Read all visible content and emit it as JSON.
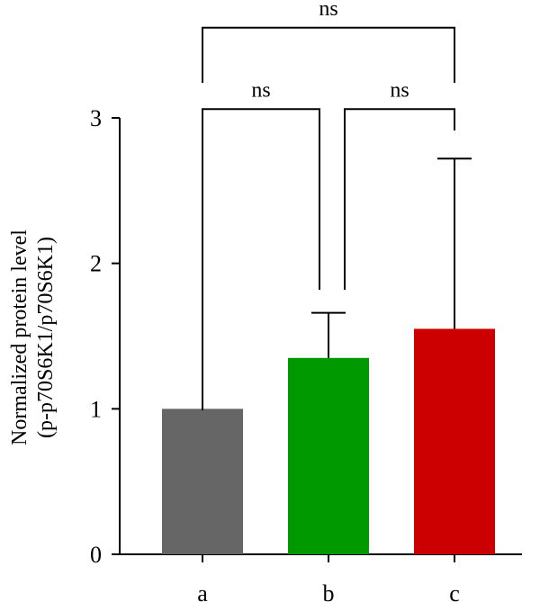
{
  "chart_data": {
    "type": "bar",
    "categories": [
      "a",
      "b",
      "c"
    ],
    "values": [
      1.0,
      1.35,
      1.55
    ],
    "error_upper": [
      0.0,
      0.31,
      1.17
    ],
    "colors": [
      "#666666",
      "#009900",
      "#cc0000"
    ],
    "ylabel_line1": "Normalized protein level",
    "ylabel_line2": "(p-p70S6K1/p70S6K1)",
    "ylim": [
      0,
      3
    ],
    "yticks": [
      {
        "value": 0,
        "label": "0"
      },
      {
        "value": 1,
        "label": "1"
      },
      {
        "value": 2,
        "label": "2"
      },
      {
        "value": 3,
        "label": "3"
      }
    ],
    "significance": [
      {
        "from": "a",
        "to": "b",
        "label": "ns",
        "level": 3.06
      },
      {
        "from": "b",
        "to": "c",
        "label": "ns",
        "level": 3.06
      },
      {
        "from": "a",
        "to": "c",
        "label": "ns",
        "level": 3.62
      }
    ],
    "grid": false,
    "legend": "none"
  }
}
